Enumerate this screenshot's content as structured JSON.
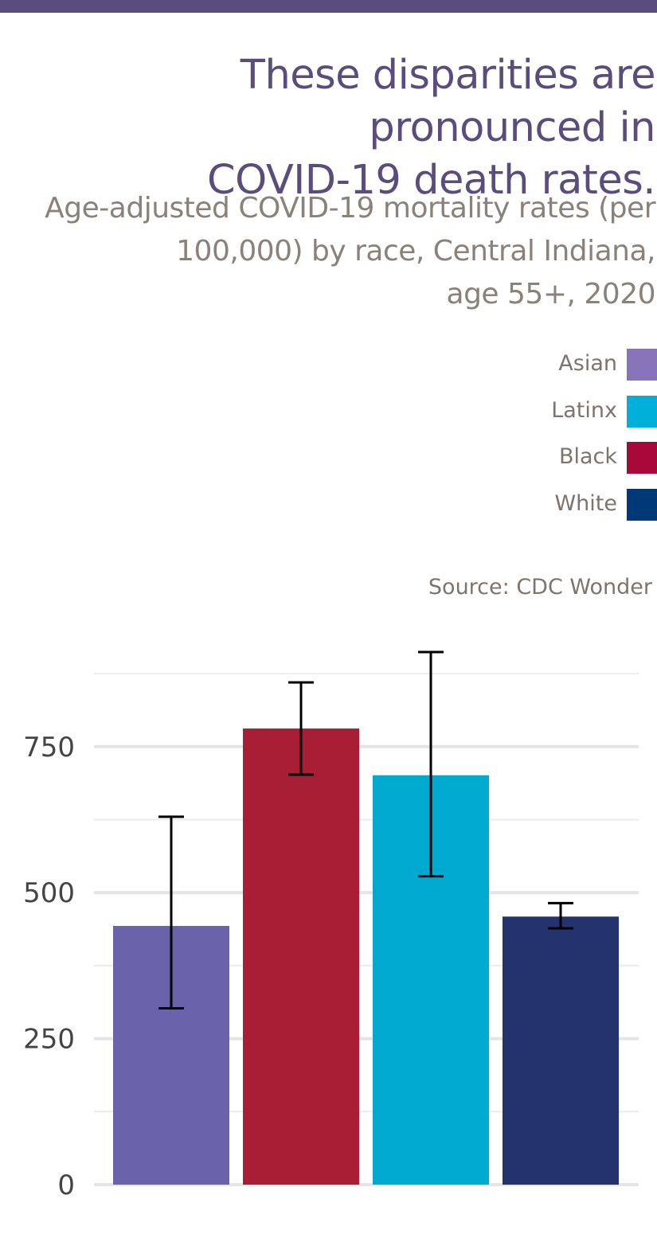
{
  "header": {
    "title_line1": "These disparities are pronounced in",
    "title_line2": "COVID-19 death rates.",
    "subtitle_line1": "Age-adjusted COVID-19 mortality rates (per",
    "subtitle_line2": "100,000) by race, Central Indiana,",
    "subtitle_line3": "age 55+, 2020"
  },
  "legend": [
    {
      "label": "Asian",
      "color": "#8874bb"
    },
    {
      "label": "Latinx",
      "color": "#00b0d8"
    },
    {
      "label": "Black",
      "color": "#a8093a"
    },
    {
      "label": "White",
      "color": "#013878"
    }
  ],
  "source": "Source: CDC Wonder",
  "chart_data": {
    "type": "bar",
    "categories": [
      "Asian",
      "Black",
      "Latinx",
      "White"
    ],
    "values": [
      443,
      781,
      701,
      459
    ],
    "error_low": [
      302,
      702,
      528,
      439
    ],
    "error_high": [
      630,
      860,
      912,
      482
    ],
    "colors": [
      "#6a63ac",
      "#a81e35",
      "#00a9cf",
      "#24336d"
    ],
    "yticks": [
      0,
      250,
      500,
      750
    ],
    "ytick_labels": [
      "0",
      "250",
      "500",
      "750"
    ],
    "ylim": [
      0,
      875
    ],
    "grid": true,
    "legend_position": "top-right"
  }
}
